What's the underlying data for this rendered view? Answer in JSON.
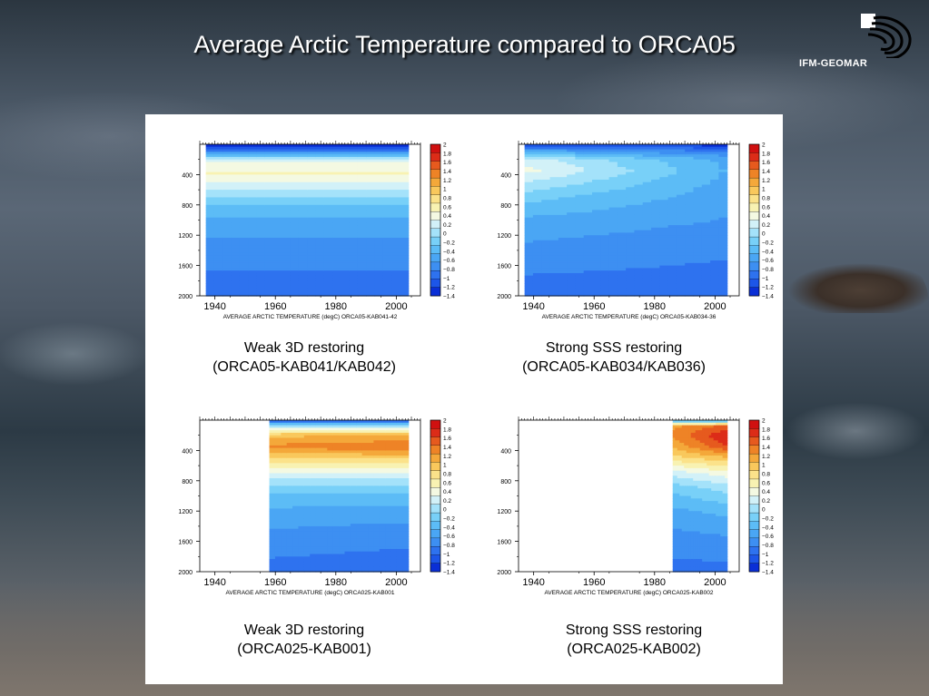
{
  "slide": {
    "title": "Average Arctic Temperature compared to ORCA05",
    "logo_text": "IFM-GEOMAR"
  },
  "colors": {
    "panel_background": "#ffffff",
    "title_text": "#ffffff",
    "colorbar": [
      "#0a2fd6",
      "#1d56e8",
      "#2e72ef",
      "#3d8ff2",
      "#4aa6f4",
      "#5cbcf6",
      "#78d0f8",
      "#a4e2fa",
      "#d2f1f8",
      "#f4f9e2",
      "#f8f2b2",
      "#fbe28a",
      "#f9c85c",
      "#f4a83a",
      "#ee8326",
      "#e65a1e",
      "#dc2c18",
      "#d01010"
    ]
  },
  "captions": [
    {
      "line1": "Weak 3D restoring",
      "line2": "(ORCA05-KAB041/KAB042)"
    },
    {
      "line1": "Strong SSS restoring",
      "line2": "(ORCA05-KAB034/KAB036)"
    },
    {
      "line1": "Weak 3D restoring",
      "line2": "(ORCA025-KAB001)"
    },
    {
      "line1": "Strong SSS restoring",
      "line2": "(ORCA025-KAB002)"
    }
  ],
  "chart_data": [
    {
      "type": "heatmap",
      "title": "",
      "xlabel": "AVERAGE ARCTIC TEMPERATURE (degC) ORCA05-KAB041-42",
      "ylabel": "",
      "x_ticks": [
        "1940",
        "1960",
        "1980",
        "2000"
      ],
      "y_ticks": [
        "400",
        "800",
        "1200",
        "1600",
        "2000"
      ],
      "xlim": [
        1935,
        2008
      ],
      "ylim": [
        2000,
        0
      ],
      "data_start_year": 1937,
      "data_end_year": 2004,
      "colorbar_labels": [
        "2",
        "1.8",
        "1.6",
        "1.4",
        "1.2",
        "1",
        "0.8",
        "0.6",
        "0.4",
        "0.2",
        "0",
        "−0.2",
        "−0.4",
        "−0.6",
        "−0.8",
        "−1",
        "−1.2",
        "−1.4"
      ],
      "depth_profile": [
        {
          "depth": 0,
          "t_start": -1.3,
          "t_end": -1.3
        },
        {
          "depth": 80,
          "t_start": -1.0,
          "t_end": -1.0
        },
        {
          "depth": 150,
          "t_start": -0.3,
          "t_end": -0.3
        },
        {
          "depth": 250,
          "t_start": 0.4,
          "t_end": 0.4
        },
        {
          "depth": 400,
          "t_start": 0.5,
          "t_end": 0.5
        },
        {
          "depth": 600,
          "t_start": 0.1,
          "t_end": 0.1
        },
        {
          "depth": 800,
          "t_start": -0.3,
          "t_end": -0.3
        },
        {
          "depth": 1000,
          "t_start": -0.5,
          "t_end": -0.5
        },
        {
          "depth": 1300,
          "t_start": -0.7,
          "t_end": -0.7
        },
        {
          "depth": 1700,
          "t_start": -0.85,
          "t_end": -0.85
        },
        {
          "depth": 2000,
          "t_start": -0.95,
          "t_end": -0.95
        }
      ]
    },
    {
      "type": "heatmap",
      "title": "",
      "xlabel": "AVERAGE ARCTIC TEMPERATURE (degC) ORCA05-KAB034-36",
      "ylabel": "",
      "x_ticks": [
        "1940",
        "1960",
        "1980",
        "2000"
      ],
      "y_ticks": [
        "400",
        "800",
        "1200",
        "1600",
        "2000"
      ],
      "xlim": [
        1935,
        2008
      ],
      "ylim": [
        2000,
        0
      ],
      "data_start_year": 1937,
      "data_end_year": 2004,
      "colorbar_labels": [
        "2",
        "1.8",
        "1.6",
        "1.4",
        "1.2",
        "1",
        "0.8",
        "0.6",
        "0.4",
        "0.2",
        "0",
        "−0.2",
        "−0.4",
        "−0.6",
        "−0.8",
        "−1",
        "−1.2",
        "−1.4"
      ],
      "depth_profile": [
        {
          "depth": 0,
          "t_start": -1.3,
          "t_end": -1.3
        },
        {
          "depth": 80,
          "t_start": -0.6,
          "t_end": -0.9
        },
        {
          "depth": 200,
          "t_start": 0.2,
          "t_end": -0.5
        },
        {
          "depth": 350,
          "t_start": 0.35,
          "t_end": -0.45
        },
        {
          "depth": 500,
          "t_start": 0.1,
          "t_end": -0.5
        },
        {
          "depth": 700,
          "t_start": -0.2,
          "t_end": -0.55
        },
        {
          "depth": 1000,
          "t_start": -0.5,
          "t_end": -0.65
        },
        {
          "depth": 1400,
          "t_start": -0.7,
          "t_end": -0.8
        },
        {
          "depth": 2000,
          "t_start": -0.95,
          "t_end": -0.95
        }
      ]
    },
    {
      "type": "heatmap",
      "title": "",
      "xlabel": "AVERAGE ARCTIC TEMPERATURE (degC) ORCA025-KAB001",
      "ylabel": "",
      "x_ticks": [
        "1940",
        "1960",
        "1980",
        "2000"
      ],
      "y_ticks": [
        "400",
        "800",
        "1200",
        "1600",
        "2000"
      ],
      "xlim": [
        1935,
        2008
      ],
      "ylim": [
        2000,
        0
      ],
      "data_start_year": 1958,
      "data_end_year": 2004,
      "colorbar_labels": [
        "2",
        "1.8",
        "1.6",
        "1.4",
        "1.2",
        "1",
        "0.8",
        "0.6",
        "0.4",
        "0.2",
        "0",
        "−0.2",
        "−0.4",
        "−0.6",
        "−0.8",
        "−1",
        "−1.2",
        "−1.4"
      ],
      "depth_profile": [
        {
          "depth": 0,
          "t_start": -1.2,
          "t_end": -1.2
        },
        {
          "depth": 80,
          "t_start": 0.0,
          "t_end": 0.0
        },
        {
          "depth": 200,
          "t_start": 1.0,
          "t_end": 1.1
        },
        {
          "depth": 350,
          "t_start": 1.3,
          "t_end": 1.4
        },
        {
          "depth": 500,
          "t_start": 0.9,
          "t_end": 0.9
        },
        {
          "depth": 700,
          "t_start": 0.3,
          "t_end": 0.3
        },
        {
          "depth": 900,
          "t_start": -0.2,
          "t_end": -0.2
        },
        {
          "depth": 1200,
          "t_start": -0.5,
          "t_end": -0.55
        },
        {
          "depth": 1600,
          "t_start": -0.75,
          "t_end": -0.8
        },
        {
          "depth": 2000,
          "t_start": -0.9,
          "t_end": -0.95
        }
      ]
    },
    {
      "type": "heatmap",
      "title": "",
      "xlabel": "AVERAGE ARCTIC TEMPERATURE (degC) ORCA025-KAB002",
      "ylabel": "",
      "x_ticks": [
        "1940",
        "1960",
        "1980",
        "2000"
      ],
      "y_ticks": [
        "400",
        "800",
        "1200",
        "1600",
        "2000"
      ],
      "xlim": [
        1935,
        2008
      ],
      "ylim": [
        2000,
        0
      ],
      "data_start_year": 1986,
      "data_end_year": 2004,
      "colorbar_labels": [
        "2",
        "1.8",
        "1.6",
        "1.4",
        "1.2",
        "1",
        "0.8",
        "0.6",
        "0.4",
        "0.2",
        "0",
        "−0.2",
        "−0.4",
        "−0.6",
        "−0.8",
        "−1",
        "−1.2",
        "−1.4"
      ],
      "depth_profile": [
        {
          "depth": 0,
          "t_start": -0.6,
          "t_end": -0.6
        },
        {
          "depth": 80,
          "t_start": 1.2,
          "t_end": 1.5
        },
        {
          "depth": 200,
          "t_start": 1.3,
          "t_end": 1.8
        },
        {
          "depth": 350,
          "t_start": 1.1,
          "t_end": 1.6
        },
        {
          "depth": 500,
          "t_start": 0.8,
          "t_end": 1.0
        },
        {
          "depth": 700,
          "t_start": 0.2,
          "t_end": 0.4
        },
        {
          "depth": 900,
          "t_start": -0.2,
          "t_end": 0.0
        },
        {
          "depth": 1200,
          "t_start": -0.5,
          "t_end": -0.4
        },
        {
          "depth": 1600,
          "t_start": -0.75,
          "t_end": -0.7
        },
        {
          "depth": 2000,
          "t_start": -0.9,
          "t_end": -0.9
        }
      ]
    }
  ]
}
